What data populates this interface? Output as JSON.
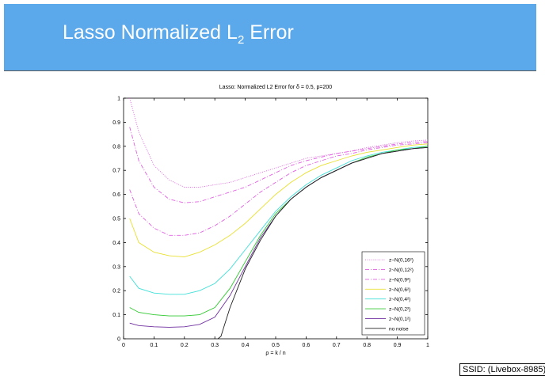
{
  "slide": {
    "title_main": "Lasso Normalized L",
    "title_sub": "2",
    "title_end": " Error",
    "ssid_label": "SSID: (Livebox-8985)"
  },
  "chart_data": {
    "type": "line",
    "title": "Lasso: Normalized L2 Error for δ = 0.5, p=200",
    "xlabel": "ρ = k / n",
    "ylabel": "",
    "xlim": [
      0,
      1
    ],
    "ylim": [
      0,
      1
    ],
    "xticks": [
      "0",
      "0.1",
      "0.2",
      "0.3",
      "0.4",
      "0.5",
      "0.6",
      "0.7",
      "0.8",
      "0.9",
      "1"
    ],
    "yticks": [
      "0",
      "0.1",
      "0.2",
      "0.3",
      "0.4",
      "0.5",
      "0.6",
      "0.7",
      "0.8",
      "0.9",
      "1"
    ],
    "grid": false,
    "legend_position": "bottom-right",
    "x": [
      0.02,
      0.05,
      0.1,
      0.15,
      0.2,
      0.25,
      0.3,
      0.35,
      0.4,
      0.45,
      0.5,
      0.55,
      0.6,
      0.65,
      0.7,
      0.75,
      0.8,
      0.85,
      0.9,
      0.95,
      1.0
    ],
    "series": [
      {
        "name": "z~N(0,16²)",
        "style": "dotted",
        "color": "#e060e0",
        "values": [
          1.0,
          0.86,
          0.72,
          0.66,
          0.63,
          0.63,
          0.64,
          0.65,
          0.67,
          0.69,
          0.71,
          0.73,
          0.75,
          0.76,
          0.77,
          0.78,
          0.795,
          0.805,
          0.815,
          0.822,
          0.826
        ]
      },
      {
        "name": "z~N(0,12²)",
        "style": "dashdot",
        "color": "#e060e0",
        "values": [
          0.88,
          0.74,
          0.63,
          0.58,
          0.565,
          0.57,
          0.59,
          0.61,
          0.63,
          0.66,
          0.69,
          0.72,
          0.74,
          0.755,
          0.77,
          0.78,
          0.79,
          0.8,
          0.81,
          0.816,
          0.82
        ]
      },
      {
        "name": "z~N(0,9²)",
        "style": "dashdot",
        "color": "#e060e0",
        "values": [
          0.62,
          0.52,
          0.46,
          0.43,
          0.43,
          0.44,
          0.47,
          0.51,
          0.56,
          0.61,
          0.65,
          0.69,
          0.72,
          0.74,
          0.76,
          0.77,
          0.785,
          0.795,
          0.805,
          0.81,
          0.815
        ]
      },
      {
        "name": "z~N(0,6²)",
        "style": "solid",
        "color": "#e8e030",
        "values": [
          0.5,
          0.4,
          0.36,
          0.345,
          0.34,
          0.36,
          0.39,
          0.43,
          0.48,
          0.54,
          0.6,
          0.65,
          0.69,
          0.72,
          0.74,
          0.76,
          0.775,
          0.785,
          0.795,
          0.805,
          0.81
        ]
      },
      {
        "name": "z~N(0,4²)",
        "style": "solid",
        "color": "#40e0d8",
        "values": [
          0.26,
          0.21,
          0.19,
          0.185,
          0.185,
          0.2,
          0.23,
          0.29,
          0.37,
          0.45,
          0.53,
          0.59,
          0.64,
          0.68,
          0.71,
          0.74,
          0.76,
          0.775,
          0.785,
          0.795,
          0.8
        ]
      },
      {
        "name": "z~N(0,2²)",
        "style": "solid",
        "color": "#30c830",
        "values": [
          0.13,
          0.11,
          0.1,
          0.095,
          0.095,
          0.1,
          0.13,
          0.21,
          0.32,
          0.43,
          0.52,
          0.58,
          0.63,
          0.67,
          0.7,
          0.73,
          0.755,
          0.77,
          0.785,
          0.79,
          0.8
        ]
      },
      {
        "name": "z~N(0,1²)",
        "style": "solid",
        "color": "#7030a0",
        "values": [
          0.065,
          0.055,
          0.05,
          0.048,
          0.05,
          0.06,
          0.09,
          0.18,
          0.3,
          0.42,
          0.51,
          0.58,
          0.63,
          0.67,
          0.7,
          0.73,
          0.75,
          0.77,
          0.78,
          0.79,
          0.795
        ]
      },
      {
        "name": "no noise",
        "style": "solid",
        "color": "#202020",
        "x": [
          0.31,
          0.32,
          0.33,
          0.35,
          0.4,
          0.45,
          0.5,
          0.55,
          0.6,
          0.65,
          0.7,
          0.75,
          0.8,
          0.85,
          0.9,
          0.95,
          1.0
        ],
        "values": [
          0.0,
          0.01,
          0.05,
          0.13,
          0.29,
          0.41,
          0.51,
          0.58,
          0.63,
          0.67,
          0.7,
          0.73,
          0.75,
          0.77,
          0.78,
          0.79,
          0.795
        ]
      }
    ]
  }
}
